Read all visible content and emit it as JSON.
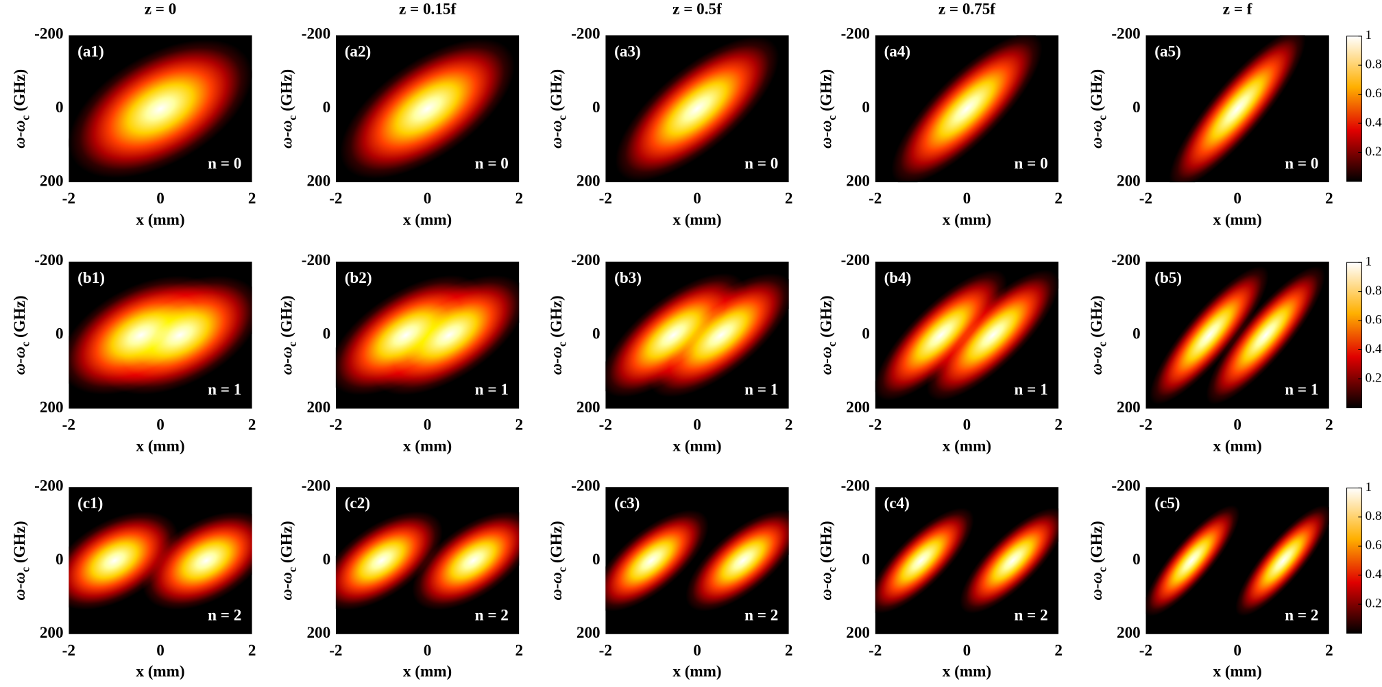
{
  "chart_data": {
    "type": "heatmap",
    "colormap": "hot",
    "column_titles": [
      "z = 0",
      "z = 0.15f",
      "z = 0.5f",
      "z = 0.75f",
      "z = f"
    ],
    "row_labels": [
      "n = 0",
      "n = 1",
      "n = 2"
    ],
    "panel_labels": [
      [
        "(a1)",
        "(a2)",
        "(a3)",
        "(a4)",
        "(a5)"
      ],
      [
        "(b1)",
        "(b2)",
        "(b3)",
        "(b4)",
        "(b5)"
      ],
      [
        "(c1)",
        "(c2)",
        "(c3)",
        "(c4)",
        "(c5)"
      ]
    ],
    "xlabel": "x (mm)",
    "ylabel": {
      "main": "ω-ω",
      "sub": "c",
      "unit": " (GHz)"
    },
    "xlim": [
      -2,
      2
    ],
    "xticks": [
      -2,
      0,
      2
    ],
    "ylim": [
      -200,
      200
    ],
    "yticks": [
      -200,
      0,
      200
    ],
    "colorbar": {
      "lim": [
        0,
        1
      ],
      "ticks": [
        0.2,
        0.4,
        0.6,
        0.8,
        1
      ]
    }
  }
}
